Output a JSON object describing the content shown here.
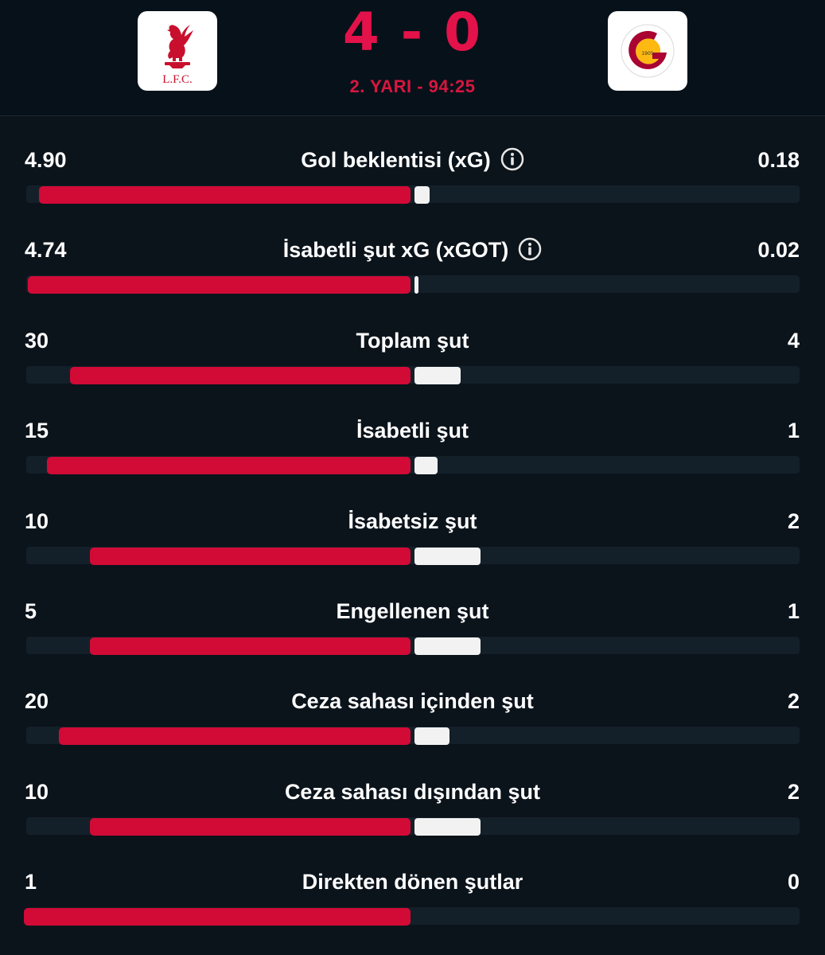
{
  "match": {
    "score": "4 - 0",
    "period": "2. YARI - 94:25",
    "home_logo": {
      "icon": "liverbird-crest-icon",
      "text": "L.F.C.",
      "color": "#c8102e"
    },
    "away_logo": {
      "icon": "galatasaray-crest-icon",
      "text": "1905",
      "colors": [
        "#a90432",
        "#fdb912"
      ]
    }
  },
  "colors": {
    "home_bar": "#d20a36",
    "away_bar": "#f2f2f2",
    "track": "#142029",
    "accent": "#e4124a",
    "background": "#0b131b"
  },
  "stats": [
    {
      "label": "Gol beklentisi (xG)",
      "home": "4.90",
      "away": "0.18",
      "home_share": 0.96,
      "away_share": 0.04,
      "info_icon": true
    },
    {
      "label": "İsabetli şut xG (xGOT)",
      "home": "4.74",
      "away": "0.02",
      "home_share": 0.99,
      "away_share": 0.01,
      "info_icon": true
    },
    {
      "label": "Toplam şut",
      "home": "30",
      "away": "4",
      "home_share": 0.88,
      "away_share": 0.12,
      "info_icon": false
    },
    {
      "label": "İsabetli şut",
      "home": "15",
      "away": "1",
      "home_share": 0.94,
      "away_share": 0.06,
      "info_icon": false
    },
    {
      "label": "İsabetsiz şut",
      "home": "10",
      "away": "2",
      "home_share": 0.83,
      "away_share": 0.17,
      "info_icon": false
    },
    {
      "label": "Engellenen şut",
      "home": "5",
      "away": "1",
      "home_share": 0.83,
      "away_share": 0.17,
      "info_icon": false
    },
    {
      "label": "Ceza sahası içinden şut",
      "home": "20",
      "away": "2",
      "home_share": 0.91,
      "away_share": 0.09,
      "info_icon": false
    },
    {
      "label": "Ceza sahası dışından şut",
      "home": "10",
      "away": "2",
      "home_share": 0.83,
      "away_share": 0.17,
      "info_icon": false
    },
    {
      "label": "Direkten dönen şutlar",
      "home": "1",
      "away": "0",
      "home_share": 1.0,
      "away_share": 0.0,
      "info_icon": false
    }
  ]
}
